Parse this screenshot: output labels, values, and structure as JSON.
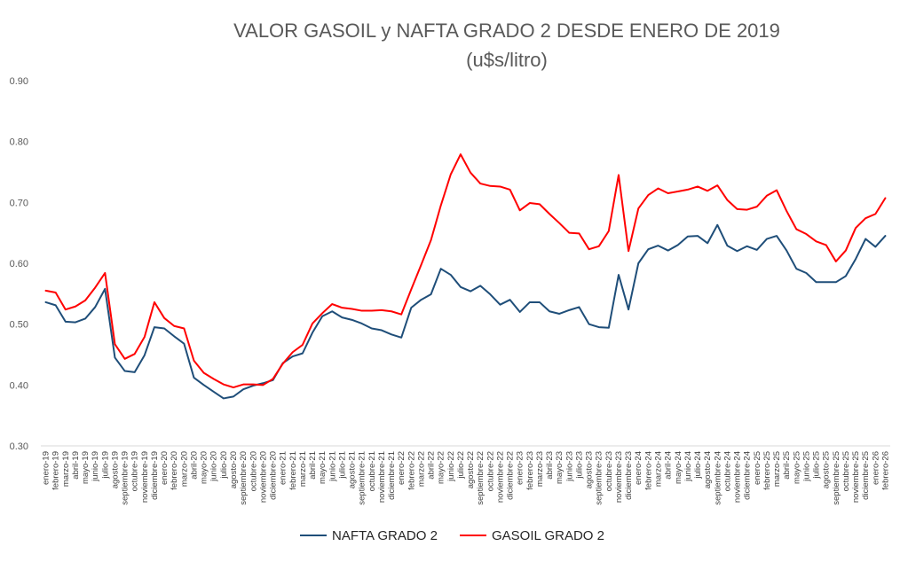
{
  "chart_data": {
    "type": "line",
    "title": "VALOR GASOIL y NAFTA GRADO 2 DESDE ENERO DE 2019",
    "subtitle": "(u$s/litro)",
    "xlabel": "",
    "ylabel": "",
    "ylim": [
      0.3,
      0.9
    ],
    "yticks": [
      "0.30",
      "0.40",
      "0.50",
      "0.60",
      "0.70",
      "0.80",
      "0.90"
    ],
    "ytick_values": [
      0.3,
      0.4,
      0.5,
      0.6,
      0.7,
      0.8,
      0.9
    ],
    "grid": false,
    "legend_position": "bottom",
    "categories": [
      "enero-19",
      "febrero-19",
      "marzo-19",
      "abril-19",
      "mayo-19",
      "junio-19",
      "julio-19",
      "agosto-19",
      "septiembre-19",
      "octubre-19",
      "noviembre-19",
      "diciembre-19",
      "enero-20",
      "febrero-20",
      "marzo-20",
      "abril-20",
      "mayo-20",
      "junio-20",
      "julio-20",
      "agosto-20",
      "septiembre-20",
      "octubre-20",
      "noviembre-20",
      "diciembre-20",
      "enero-21",
      "febrero-21",
      "marzo-21",
      "abril-21",
      "mayo-21",
      "junio-21",
      "julio-21",
      "agosto-21",
      "septiembre-21",
      "octubre-21",
      "noviembre-21",
      "diciembre-21",
      "enero-22",
      "febrero-22",
      "marzo-22",
      "abril-22",
      "mayo-22",
      "junio-22",
      "julio-22",
      "agosto-22",
      "septiembre-22",
      "octubre-22",
      "noviembre-22",
      "diciembre-22",
      "enero-23",
      "febrero-23",
      "marzo-23",
      "abril-23",
      "mayo-23",
      "junio-23",
      "julio-23",
      "agosto-23",
      "septiembre-23",
      "octubre-23",
      "noviembre-23",
      "diciembre-23",
      "enero-24",
      "febrero-24",
      "marzo-24",
      "abril-24",
      "mayo-24",
      "junio-24",
      "julio-24",
      "agosto-24",
      "septiembre-24",
      "octubre-24",
      "noviembre-24",
      "diciembre-24",
      "enero-25",
      "febrero-25",
      "marzo-25",
      "abril-25",
      "mayo-25",
      "junio-25",
      "julio-25",
      "agosto-25",
      "septiembre-25",
      "octubre-25",
      "noviembre-25",
      "diciembre-25",
      "enero-26",
      "febrero-26"
    ],
    "xtick_labels": [
      "enero-19",
      "febrero-19",
      "marzo-19",
      "abril-19",
      "mayo-19",
      "junio-19",
      "julio-19",
      "agosto-19",
      "septiembre-19",
      "octubre-19",
      "noviembre-19",
      "diciembre-19",
      "enero-20",
      "febrero-20",
      "marzo-20",
      "abril-20",
      "mayo-20",
      "junio-20",
      "julio-20",
      "agosto-20",
      "septiembre-20",
      "octubre-20",
      "noviembre-20",
      "diciembre-20",
      "enero-21",
      "febrero-21",
      "marzo-21",
      "abril-21",
      "mayo-21",
      "junio-21",
      "julio-21",
      "agosto-21",
      "septiembre-21",
      "octubre-21",
      "noviembre-21",
      "diciembre-21",
      "enero-22",
      "febrero-22",
      "marzo-22",
      "abril-22",
      "mayo-22",
      "junio-22",
      "julio-22",
      "agosto-22",
      "septiembre-22",
      "octubre-22",
      "noviembre-22",
      "diciembre-22",
      "enero-23",
      "febrero-23",
      "marzo-23",
      "abril-23",
      "mayo-23",
      "junio-23",
      "julio-23",
      "agosto-23",
      "septiembre-23",
      "octubre-23",
      "noviembre-23",
      "diciembre-23",
      "enero-24",
      "febrero-24",
      "marzo-24",
      "abril-24",
      "mayo-24",
      "junio-24",
      "julio-24",
      "agosto-24",
      "septiembre-24",
      "octubre-24",
      "noviembre-24",
      "diciembre-24",
      "enero-25",
      "febrero-25",
      "marzo-25",
      "abril-25",
      "mayo-25",
      "junio-25",
      "julio-25",
      "agosto-25",
      "septiembre-25",
      "octubre-25",
      "noviembre-25",
      "diciembre-25",
      "enero-26",
      "febrero-26"
    ],
    "series": [
      {
        "name": "NAFTA GRADO 2",
        "color": "#1f4e79",
        "values": [
          0.536,
          0.531,
          0.504,
          0.503,
          0.509,
          0.528,
          0.558,
          0.445,
          0.423,
          0.421,
          0.449,
          0.495,
          0.493,
          0.48,
          0.468,
          0.412,
          0.4,
          0.389,
          0.378,
          0.381,
          0.393,
          0.399,
          0.403,
          0.408,
          0.436,
          0.447,
          0.452,
          0.486,
          0.513,
          0.521,
          0.511,
          0.507,
          0.501,
          0.493,
          0.49,
          0.483,
          0.478,
          0.527,
          0.54,
          0.549,
          0.591,
          0.581,
          0.561,
          0.554,
          0.563,
          0.549,
          0.532,
          0.54,
          0.52,
          0.536,
          0.536,
          0.521,
          0.517,
          0.523,
          0.528,
          0.5,
          0.495,
          0.494,
          0.581,
          0.524,
          0.6,
          0.623,
          0.629,
          0.621,
          0.63,
          0.644,
          0.645,
          0.633,
          0.663,
          0.629,
          0.62,
          0.628,
          0.622,
          0.64,
          0.645,
          0.621,
          0.591,
          0.584,
          0.569,
          0.569,
          0.569,
          0.579,
          0.607,
          0.64,
          0.627,
          0.645
        ]
      },
      {
        "name": "GASOIL GRADO 2",
        "color": "#ff0000",
        "values": [
          0.555,
          0.552,
          0.524,
          0.529,
          0.539,
          0.56,
          0.584,
          0.467,
          0.443,
          0.451,
          0.479,
          0.536,
          0.51,
          0.497,
          0.493,
          0.44,
          0.42,
          0.41,
          0.401,
          0.396,
          0.401,
          0.401,
          0.4,
          0.41,
          0.435,
          0.454,
          0.466,
          0.501,
          0.518,
          0.533,
          0.527,
          0.525,
          0.522,
          0.522,
          0.523,
          0.521,
          0.516,
          0.557,
          0.597,
          0.638,
          0.695,
          0.746,
          0.779,
          0.749,
          0.731,
          0.727,
          0.726,
          0.721,
          0.687,
          0.699,
          0.697,
          0.681,
          0.666,
          0.65,
          0.649,
          0.623,
          0.628,
          0.653,
          0.745,
          0.62,
          0.69,
          0.712,
          0.723,
          0.715,
          0.718,
          0.721,
          0.726,
          0.719,
          0.728,
          0.704,
          0.689,
          0.688,
          0.693,
          0.711,
          0.72,
          0.686,
          0.656,
          0.648,
          0.636,
          0.63,
          0.603,
          0.621,
          0.658,
          0.674,
          0.681,
          0.707
        ]
      }
    ]
  }
}
